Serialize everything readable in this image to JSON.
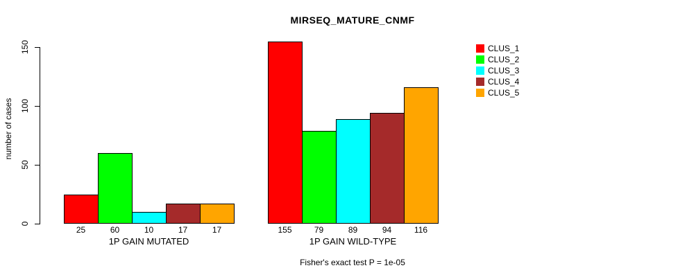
{
  "title": "MIRSEQ_MATURE_CNMF",
  "ylabel": "number of cases",
  "footer": "Fisher's exact test P = 1e-05",
  "chart_data": {
    "type": "bar",
    "title": "MIRSEQ_MATURE_CNMF",
    "ylabel": "number of cases",
    "xlabel": "",
    "ylim": [
      0,
      150
    ],
    "yticks": [
      0,
      50,
      100,
      150
    ],
    "grid": false,
    "legend_position": "right",
    "legend": [
      {
        "label": "CLUS_1",
        "color": "#ff0000"
      },
      {
        "label": "CLUS_2",
        "color": "#00ff00"
      },
      {
        "label": "CLUS_3",
        "color": "#00ffff"
      },
      {
        "label": "CLUS_4",
        "color": "#a52a2a"
      },
      {
        "label": "CLUS_5",
        "color": "#ffa500"
      }
    ],
    "groups": [
      {
        "label": "1P GAIN MUTATED",
        "values": [
          25,
          60,
          10,
          17,
          17
        ]
      },
      {
        "label": "1P GAIN WILD-TYPE",
        "values": [
          155,
          79,
          89,
          94,
          116
        ]
      }
    ],
    "annotation": "Fisher's exact test P = 1e-05"
  }
}
